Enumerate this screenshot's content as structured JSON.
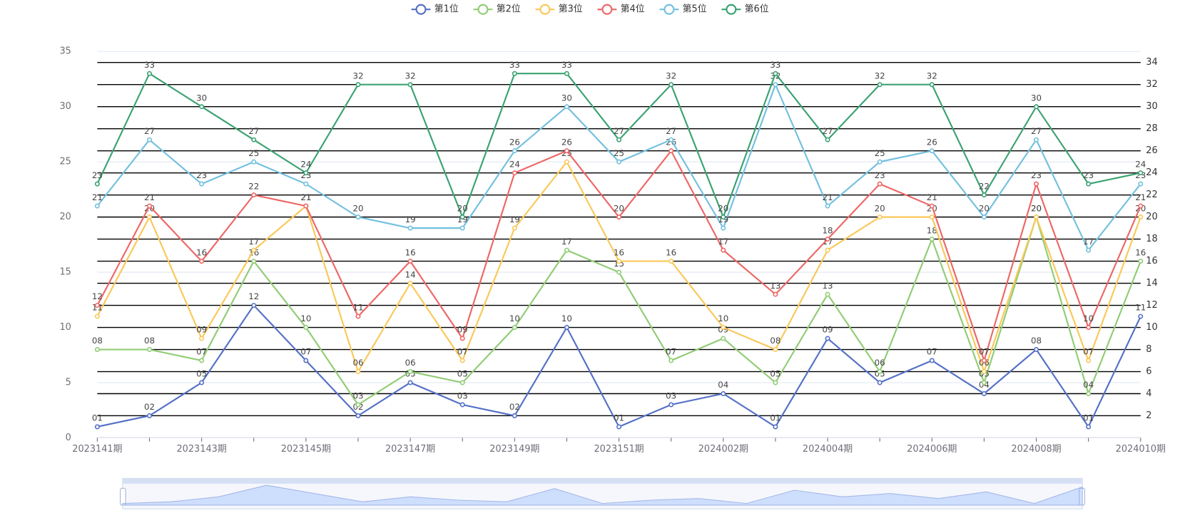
{
  "chart_data": {
    "type": "line",
    "categories": [
      "2023141期",
      null,
      "2023143期",
      null,
      "2023145期",
      null,
      "2023147期",
      null,
      "2023149期",
      null,
      "2023151期",
      null,
      "2024002期",
      null,
      "2024004期",
      null,
      "2024006期",
      null,
      "2024008期",
      null,
      "2024010期"
    ],
    "series": [
      {
        "name": "第1位",
        "color": "#5470c6",
        "values": [
          1,
          2,
          5,
          12,
          7,
          2,
          5,
          3,
          2,
          10,
          1,
          3,
          4,
          1,
          9,
          5,
          7,
          4,
          8,
          1,
          11
        ],
        "value_labels": [
          "01",
          "02",
          "05",
          "12",
          "07",
          "02",
          "05",
          "03",
          "02",
          "10",
          "01",
          "03",
          "04",
          "01",
          "09",
          "05",
          "07",
          "04",
          "08",
          "01",
          "11"
        ]
      },
      {
        "name": "第2位",
        "color": "#91cc75",
        "values": [
          8,
          8,
          7,
          16,
          10,
          3,
          6,
          5,
          10,
          17,
          15,
          7,
          9,
          5,
          13,
          6,
          18,
          5,
          20,
          4,
          16
        ],
        "value_labels": [
          "08",
          "08",
          "07",
          "16",
          "10",
          "03",
          "06",
          "05",
          "10",
          "17",
          "15",
          "07",
          "09",
          "05",
          "13",
          "06",
          "18",
          "05",
          "20",
          "04",
          "16"
        ]
      },
      {
        "name": "第3位",
        "color": "#fac858",
        "values": [
          11,
          20,
          9,
          17,
          21,
          6,
          14,
          7,
          19,
          25,
          16,
          16,
          10,
          8,
          17,
          20,
          20,
          6,
          20,
          7,
          20
        ],
        "value_labels": [
          "11",
          "20",
          "09",
          "17",
          "21",
          "06",
          "14",
          "07",
          "19",
          "25",
          "16",
          "16",
          "10",
          "08",
          "17",
          "20",
          "20",
          "06",
          "20",
          "07",
          "20"
        ]
      },
      {
        "name": "第4位",
        "color": "#ee6666",
        "values": [
          12,
          21,
          16,
          22,
          21,
          11,
          16,
          9,
          24,
          26,
          20,
          26,
          17,
          13,
          18,
          23,
          21,
          7,
          23,
          10,
          21
        ],
        "value_labels": [
          "12",
          "21",
          "16",
          "22",
          "21",
          "11",
          "16",
          "09",
          "24",
          "26",
          "20",
          "26",
          "17",
          "13",
          "18",
          "23",
          "21",
          "07",
          "23",
          "10",
          "21"
        ]
      },
      {
        "name": "第5位",
        "color": "#73c0de",
        "values": [
          21,
          27,
          23,
          25,
          23,
          20,
          19,
          19,
          26,
          30,
          25,
          27,
          19,
          32,
          21,
          25,
          26,
          20,
          27,
          17,
          23
        ]
      },
      {
        "name": "第6位",
        "color": "#3ba272",
        "values": [
          23,
          33,
          30,
          27,
          24,
          32,
          32,
          20,
          33,
          33,
          27,
          32,
          20,
          33,
          27,
          32,
          32,
          22,
          30,
          23,
          24
        ]
      }
    ],
    "ylim": [
      0,
      35
    ],
    "yticks": [
      0,
      5,
      10,
      15,
      20,
      25,
      30,
      35
    ],
    "y2lim": [
      0,
      35
    ],
    "y2ticks": [
      2,
      4,
      6,
      8,
      10,
      12,
      14,
      16,
      18,
      20,
      22,
      24,
      26,
      28,
      30,
      32,
      34
    ],
    "grid": true
  }
}
